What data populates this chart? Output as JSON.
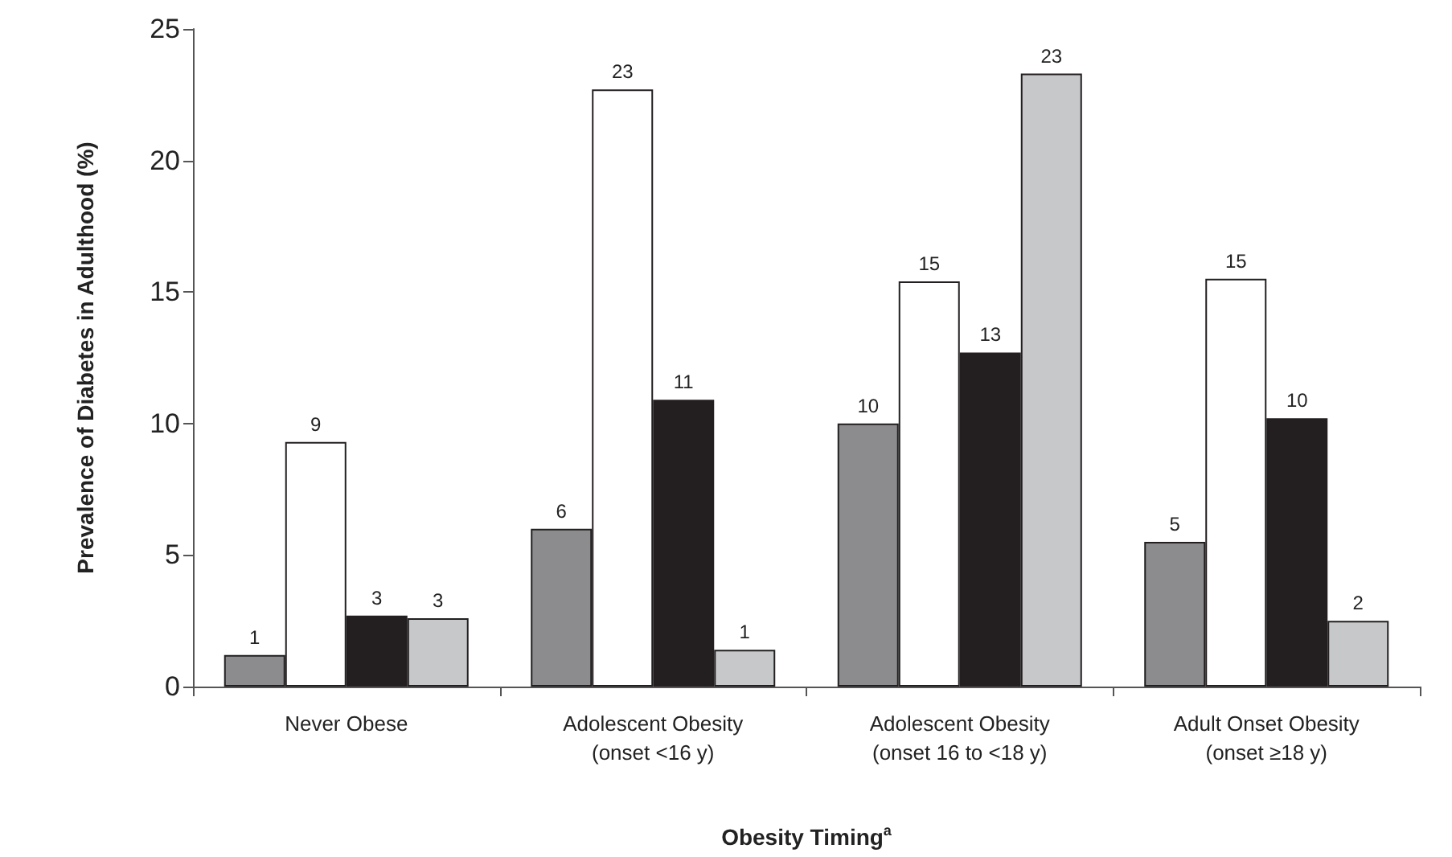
{
  "chart_data": {
    "type": "bar",
    "xlabel": "Obesity Timing$^{a}$",
    "ylabel": "Prevalence of Diabetes in Adulthood (%)",
    "categories": [
      "Never Obese",
      "Adolescent Obesity\n(onset <16 y)",
      "Adolescent Obesity\n(onset 16 to <18 y)",
      "Adult Onset Obesity\n(onset ≥18 y)"
    ],
    "series": [
      {
        "color": "#8c8c8e",
        "values": [
          1.2,
          6.0,
          10.0,
          5.5
        ],
        "value_labels": [
          "1",
          "6",
          "10",
          "5"
        ]
      },
      {
        "color": "#ffffff",
        "values": [
          9.3,
          22.7,
          15.4,
          15.5
        ],
        "value_labels": [
          "9",
          "23",
          "15",
          "15"
        ]
      },
      {
        "color": "#231f20",
        "values": [
          2.7,
          10.9,
          12.7,
          10.2
        ],
        "value_labels": [
          "3",
          "11",
          "13",
          "10"
        ]
      },
      {
        "color": "#c7c8ca",
        "values": [
          2.6,
          1.4,
          23.3,
          2.5
        ],
        "value_labels": [
          "3",
          "1",
          "23",
          "2"
        ]
      }
    ],
    "ylim": [
      0,
      25
    ],
    "yticks": [
      0,
      5,
      10,
      15,
      20,
      25
    ],
    "grid": false
  }
}
